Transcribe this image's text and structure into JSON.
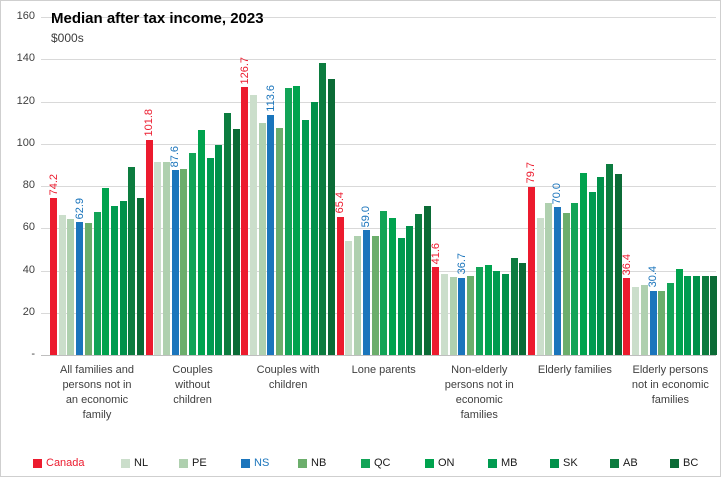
{
  "title": "Median after tax income, 2023",
  "subtitle": "$000s",
  "colors": {
    "grid": "#d9d9d9",
    "axis": "#bfbfbf",
    "canada_red": "#EC1B2E",
    "ns_blue": "#1B75BC"
  },
  "chart_data": {
    "type": "bar",
    "title": "Median after tax income, 2023",
    "subtitle": "$000s",
    "ylim": [
      0,
      160
    ],
    "ytick_interval": 20,
    "grid": true,
    "legend_position": "bottom",
    "yticks": [
      {
        "v": 160,
        "label": "160"
      },
      {
        "v": 140,
        "label": "140"
      },
      {
        "v": 120,
        "label": "120"
      },
      {
        "v": 100,
        "label": "100"
      },
      {
        "v": 80,
        "label": "80"
      },
      {
        "v": 60,
        "label": "60"
      },
      {
        "v": 40,
        "label": "40"
      },
      {
        "v": 20,
        "label": "20"
      },
      {
        "v": 0,
        "label": "-"
      }
    ],
    "categories": [
      {
        "label": "All families and persons not in an economic family",
        "lines": [
          "All families and",
          "persons not in",
          "an economic",
          "family"
        ]
      },
      {
        "label": "Couples without children",
        "lines": [
          "Couples",
          "without",
          "children"
        ]
      },
      {
        "label": "Couples with children",
        "lines": [
          "Couples with",
          "children"
        ]
      },
      {
        "label": "Lone parents",
        "lines": [
          "Lone parents"
        ]
      },
      {
        "label": "Non-elderly persons not in economic families",
        "lines": [
          "Non-elderly",
          "persons not in",
          "economic",
          "families"
        ]
      },
      {
        "label": "Elderly families",
        "lines": [
          "Elderly families"
        ]
      },
      {
        "label": "Elderly persons not in economic families",
        "lines": [
          "Elderly persons",
          "not in economic",
          "families"
        ]
      }
    ],
    "series": [
      {
        "name": "Canada",
        "color": "#EC1B2E",
        "label_color": "#EC1B2E",
        "values": [
          74.2,
          101.8,
          126.7,
          65.4,
          41.6,
          79.7,
          36.4
        ],
        "value_labels": [
          "74.2",
          "101.8",
          "126.7",
          "65.4",
          "41.6",
          "79.7",
          "36.4"
        ]
      },
      {
        "name": "NL",
        "color": "#CBDECB",
        "values": [
          66.4,
          91.5,
          123.0,
          54.0,
          38.5,
          65.0,
          32.0
        ]
      },
      {
        "name": "PE",
        "color": "#AFD0AF",
        "values": [
          64.6,
          91.5,
          110.0,
          56.3,
          37.0,
          72.0,
          33.0
        ]
      },
      {
        "name": "NS",
        "color": "#1B75BC",
        "label_color": "#1B75BC",
        "values": [
          62.9,
          87.6,
          113.6,
          59.0,
          36.7,
          70.0,
          30.4
        ],
        "value_labels": [
          "62.9",
          "87.6",
          "113.6",
          "59.0",
          "36.7",
          "70.0",
          "30.4"
        ]
      },
      {
        "name": "NB",
        "color": "#6CAE6C",
        "values": [
          62.3,
          88.2,
          107.5,
          56.3,
          37.5,
          67.3,
          30.5
        ]
      },
      {
        "name": "QC",
        "color": "#12A457",
        "values": [
          67.5,
          95.5,
          126.5,
          68.2,
          41.5,
          72.0,
          34.0
        ]
      },
      {
        "name": "ON",
        "color": "#00A34E",
        "values": [
          79.3,
          106.4,
          127.5,
          65.0,
          42.5,
          86.3,
          40.5
        ]
      },
      {
        "name": "MB",
        "color": "#009B50",
        "values": [
          70.7,
          93.4,
          111.2,
          55.2,
          40.0,
          77.3,
          37.5
        ]
      },
      {
        "name": "SK",
        "color": "#00914A",
        "values": [
          73.0,
          99.5,
          120.0,
          61.1,
          38.5,
          84.3,
          37.5
        ]
      },
      {
        "name": "AB",
        "color": "#0C7C3F",
        "values": [
          89.0,
          114.8,
          138.4,
          66.9,
          46.0,
          90.3,
          37.5
        ]
      },
      {
        "name": "BC",
        "color": "#0B6B36",
        "values": [
          74.5,
          106.8,
          130.5,
          70.5,
          43.5,
          85.8,
          37.5
        ]
      }
    ]
  },
  "legend": {
    "items": [
      {
        "label": "Canada",
        "color": "#EC1B2E",
        "text_color": "#EC1B2E"
      },
      {
        "label": "NL",
        "color": "#CBDECB",
        "text_color": "#1a1a1a"
      },
      {
        "label": "PE",
        "color": "#AFD0AF",
        "text_color": "#1a1a1a"
      },
      {
        "label": "NS",
        "color": "#1B75BC",
        "text_color": "#1B75BC"
      },
      {
        "label": "NB",
        "color": "#6CAE6C",
        "text_color": "#1a1a1a"
      },
      {
        "label": "QC",
        "color": "#12A457",
        "text_color": "#1a1a1a"
      },
      {
        "label": "ON",
        "color": "#00A34E",
        "text_color": "#1a1a1a"
      },
      {
        "label": "MB",
        "color": "#009B50",
        "text_color": "#1a1a1a"
      },
      {
        "label": "SK",
        "color": "#00914A",
        "text_color": "#1a1a1a"
      },
      {
        "label": "AB",
        "color": "#0C7C3F",
        "text_color": "#1a1a1a"
      },
      {
        "label": "BC",
        "color": "#0B6B36",
        "text_color": "#1a1a1a"
      }
    ]
  }
}
